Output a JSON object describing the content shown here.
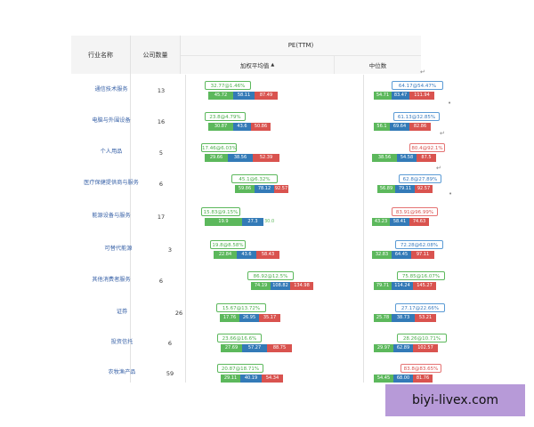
{
  "header": {
    "industry": "行业名称",
    "companies": "公司数量",
    "pe": "PE(TTM)",
    "weighted": "加权平均值",
    "median": "中位数",
    "sort_arrow": "▲"
  },
  "rows": [
    {
      "name": "通信技术服务",
      "count": "13",
      "w_label": "32.77@1.46%",
      "w_color": "green",
      "w_vals": [
        "45.72",
        "58.11",
        "87.49"
      ],
      "m_label": "64.17@54.47%",
      "m_color": "blue",
      "m_vals": [
        "54.71",
        "83.47",
        "111.94"
      ]
    },
    {
      "name": "电脑与外围设备",
      "count": "16",
      "w_label": "23.8@4.79%",
      "w_color": "green",
      "w_vals": [
        "30.87",
        "43.6",
        "50.86"
      ],
      "m_label": "61.13@32.85%",
      "m_color": "blue",
      "m_vals": [
        "56.1",
        "69.64",
        "82.86"
      ]
    },
    {
      "name": "个人用品",
      "count": "5",
      "w_label": "17.46@6.03%",
      "w_color": "green",
      "w_vals": [
        "29.66",
        "38.56",
        "52.39"
      ],
      "m_label": "80.4@92.1%",
      "m_color": "red",
      "m_vals": [
        "38.56",
        "54.58",
        "87.5"
      ]
    },
    {
      "name": "医疗保健提供商与服务",
      "count": "6",
      "w_label": "45.1@6.32%",
      "w_color": "green",
      "w_vals": [
        "59.86",
        "78.12",
        "92.57"
      ],
      "m_label": "62.8@27.89%",
      "m_color": "blue",
      "m_vals": [
        "56.89",
        "79.11",
        "92.57"
      ]
    },
    {
      "name": "能源设备与服务",
      "count": "17",
      "w_label": "15.83@9.15%",
      "w_color": "green",
      "w_vals": [
        "19.9",
        "27.3",
        "30.0"
      ],
      "m_label": "83.91@96.99%",
      "m_color": "red",
      "m_vals": [
        "43.23",
        "58.41",
        "74.63"
      ]
    },
    {
      "name": "可替代能源",
      "count": "3",
      "w_label": "19.8@8.58%",
      "w_color": "green",
      "w_vals": [
        "22.84",
        "43.6",
        "58.43"
      ],
      "m_label": "72.28@62.08%",
      "m_color": "blue",
      "m_vals": [
        "32.83",
        "64.45",
        "97.11"
      ]
    },
    {
      "name": "其他消费者服务",
      "count": "6",
      "w_label": "86.92@12.5%",
      "w_color": "green",
      "w_vals": [
        "74.19",
        "108.82",
        "134.98"
      ],
      "m_label": "75.85@16.07%",
      "m_color": "green",
      "m_vals": [
        "79.71",
        "114.24",
        "145.27"
      ]
    },
    {
      "name": "证券",
      "count": "26",
      "w_label": "15.67@13.72%",
      "w_color": "green",
      "w_vals": [
        "17.76",
        "26.95",
        "35.17"
      ],
      "m_label": "27.17@22.66%",
      "m_color": "blue",
      "m_vals": [
        "25.78",
        "38.73",
        "53.21"
      ]
    },
    {
      "name": "投资信托",
      "count": "6",
      "w_label": "23.66@16.6%",
      "w_color": "green",
      "w_vals": [
        "27.69",
        "57.27",
        "88.75"
      ],
      "m_label": "28.26@10.71%",
      "m_color": "green",
      "m_vals": [
        "29.97",
        "62.89",
        "102.57"
      ]
    },
    {
      "name": "农牧渔产品",
      "count": "59",
      "w_label": "20.87@18.71%",
      "w_color": "green",
      "w_vals": [
        "29.11",
        "40.19",
        "54.34"
      ],
      "m_label": "83.8@83.65%",
      "m_color": "red",
      "m_vals": [
        "54.45",
        "68.00",
        "81.76"
      ]
    }
  ],
  "watermark": "biyi-livex.com"
}
